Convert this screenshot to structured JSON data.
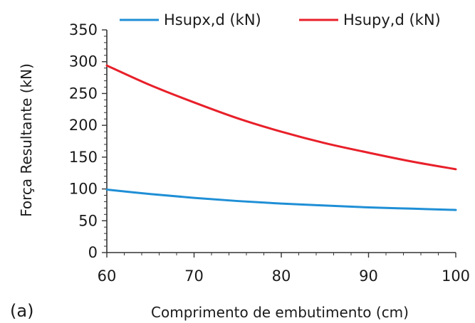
{
  "panel_label": "(a)",
  "chart_data": {
    "type": "line",
    "title": "",
    "xlabel": "Comprimento de embutimento (cm)",
    "ylabel": "Força Resultante (kN)",
    "xlim": [
      60,
      100
    ],
    "ylim": [
      0,
      350
    ],
    "x_ticks": [
      60,
      70,
      80,
      90,
      100
    ],
    "y_ticks": [
      0,
      50,
      100,
      150,
      200,
      250,
      300,
      350
    ],
    "grid": false,
    "legend_position": "top",
    "x": [
      60,
      65,
      70,
      75,
      80,
      85,
      90,
      95,
      100
    ],
    "series": [
      {
        "name": "Hsupx,d (kN)",
        "color": "#1f8fd6",
        "values": [
          99,
          92,
          86,
          81,
          77,
          74,
          71,
          69,
          67
        ]
      },
      {
        "name": "Hsupy,d (kN)",
        "color": "#e8202a",
        "values": [
          294,
          263,
          236,
          211,
          190,
          172,
          157,
          143,
          131
        ]
      }
    ]
  }
}
